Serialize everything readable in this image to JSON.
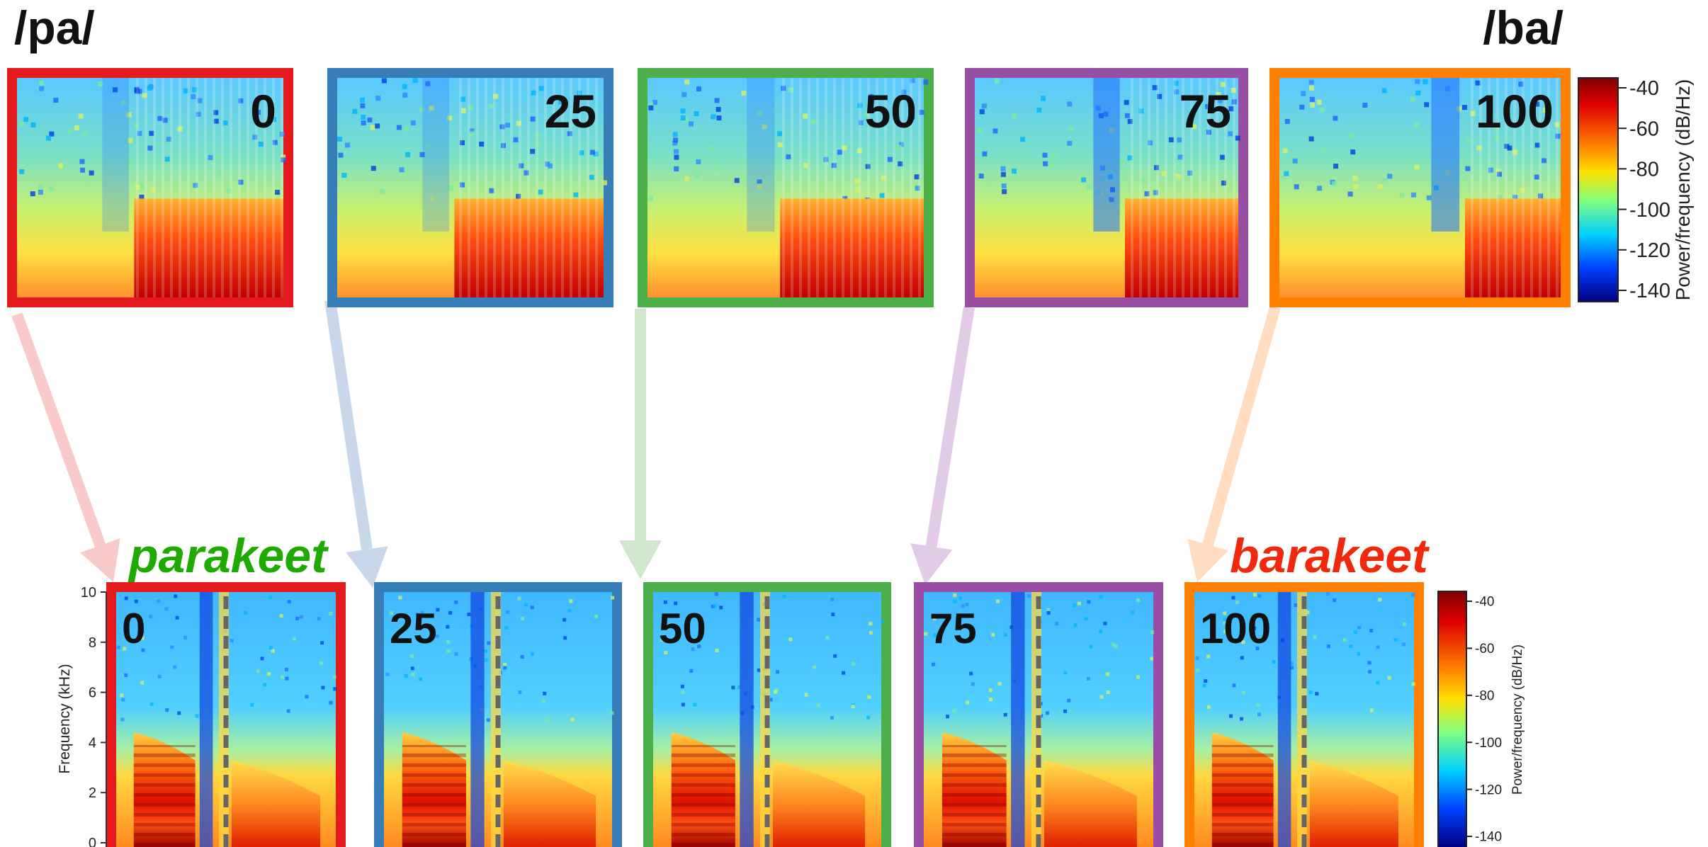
{
  "labels": {
    "pa": "/pa/",
    "ba": "/ba/",
    "parakeet": "parakeet",
    "barakeet": "barakeet"
  },
  "continuum_steps": [
    "0",
    "25",
    "50",
    "75",
    "100"
  ],
  "step_colors": [
    "#e41a1c",
    "#377eb8",
    "#4daf4a",
    "#984ea3",
    "#ff7f00"
  ],
  "word_colors": {
    "parakeet": "#1faa00",
    "barakeet": "#f2280c"
  },
  "top_colorbar": {
    "label": "Power/frequency (dB/Hz)",
    "ticks": [
      "-40",
      "-60",
      "-80",
      "-100",
      "-120",
      "-140"
    ]
  },
  "bottom_colorbar": {
    "label": "Power/frequency (dB/Hz)",
    "ticks": [
      "-40",
      "-60",
      "-80",
      "-100",
      "-120",
      "-140"
    ]
  },
  "frequency_axis": {
    "label": "Frequency (kHz)",
    "ticks": [
      "0",
      "2",
      "4",
      "6",
      "8",
      "10"
    ]
  }
}
